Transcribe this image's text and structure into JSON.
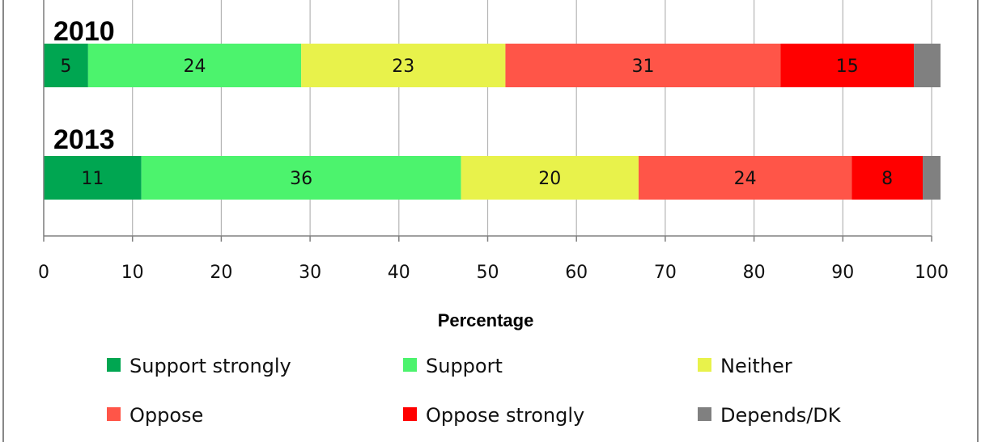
{
  "chart_data": {
    "type": "bar",
    "orientation": "horizontal",
    "stacked": true,
    "categories": [
      "2010",
      "2013"
    ],
    "series": [
      {
        "name": "Support strongly",
        "values": [
          5,
          11
        ],
        "labels": [
          "5",
          "11"
        ],
        "color": "#00a651"
      },
      {
        "name": "Support",
        "values": [
          24,
          36
        ],
        "labels": [
          "24",
          "36"
        ],
        "color": "#4cf36d"
      },
      {
        "name": "Neither",
        "values": [
          23,
          20
        ],
        "labels": [
          "23",
          "20"
        ],
        "color": "#e8f24b"
      },
      {
        "name": "Oppose",
        "values": [
          31,
          24
        ],
        "labels": [
          "31",
          "24"
        ],
        "color": "#ff5548"
      },
      {
        "name": "Oppose strongly",
        "values": [
          15,
          8
        ],
        "labels": [
          "15",
          "8"
        ],
        "color": "#ff0000"
      },
      {
        "name": "Depends/DK",
        "values": [
          3,
          2
        ],
        "labels": [
          "",
          ""
        ],
        "color": "#808080"
      }
    ],
    "xlabel": "Percentage",
    "xlim": [
      0,
      100
    ],
    "xticks": [
      "0",
      "10",
      "20",
      "30",
      "40",
      "50",
      "60",
      "70",
      "80",
      "90",
      "100"
    ],
    "grid": true,
    "legend_position": "bottom"
  }
}
